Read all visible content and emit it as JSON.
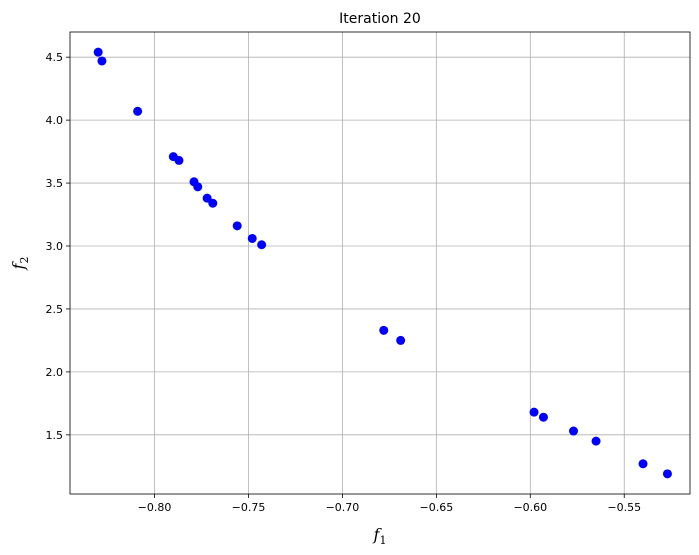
{
  "chart_data": {
    "type": "scatter",
    "title": "Iteration 20",
    "xlabel": {
      "base": "f",
      "sub": "1"
    },
    "ylabel": {
      "base": "f",
      "sub": "2"
    },
    "xlim": [
      -0.845,
      -0.515
    ],
    "ylim": [
      1.03,
      4.7
    ],
    "xticks": [
      -0.8,
      -0.75,
      -0.7,
      -0.65,
      -0.6,
      -0.55
    ],
    "xtick_labels": [
      "−0.80",
      "−0.75",
      "−0.70",
      "−0.65",
      "−0.60",
      "−0.55"
    ],
    "yticks": [
      1.5,
      2.0,
      2.5,
      3.0,
      3.5,
      4.0,
      4.5
    ],
    "ytick_labels": [
      "1.5",
      "2.0",
      "2.5",
      "3.0",
      "3.5",
      "4.0",
      "4.5"
    ],
    "grid": true,
    "marker_color": "#0000ff",
    "points": [
      {
        "x": -0.83,
        "y": 4.54
      },
      {
        "x": -0.828,
        "y": 4.47
      },
      {
        "x": -0.809,
        "y": 4.07
      },
      {
        "x": -0.79,
        "y": 3.71
      },
      {
        "x": -0.787,
        "y": 3.68
      },
      {
        "x": -0.779,
        "y": 3.51
      },
      {
        "x": -0.777,
        "y": 3.47
      },
      {
        "x": -0.772,
        "y": 3.38
      },
      {
        "x": -0.769,
        "y": 3.34
      },
      {
        "x": -0.756,
        "y": 3.16
      },
      {
        "x": -0.748,
        "y": 3.06
      },
      {
        "x": -0.743,
        "y": 3.01
      },
      {
        "x": -0.678,
        "y": 2.33
      },
      {
        "x": -0.669,
        "y": 2.25
      },
      {
        "x": -0.598,
        "y": 1.68
      },
      {
        "x": -0.593,
        "y": 1.64
      },
      {
        "x": -0.577,
        "y": 1.53
      },
      {
        "x": -0.565,
        "y": 1.45
      },
      {
        "x": -0.54,
        "y": 1.27
      },
      {
        "x": -0.527,
        "y": 1.19
      }
    ]
  }
}
